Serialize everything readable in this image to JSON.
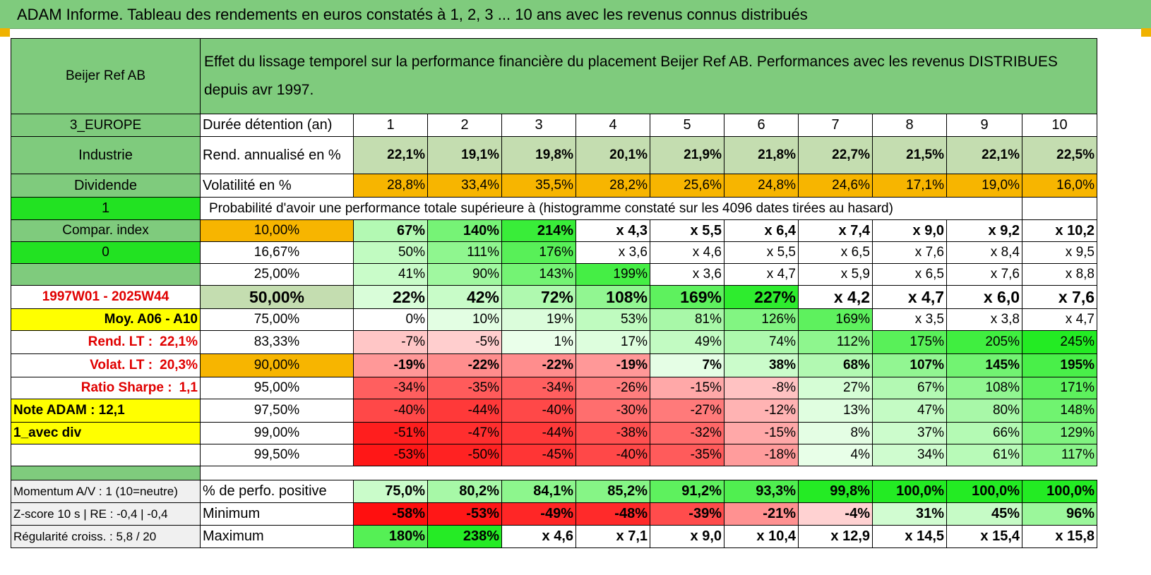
{
  "title": "ADAM Informe. Tableau des rendements en euros constatés à 1, 2, 3 ... 10 ans avec les revenus connus distribués",
  "header": {
    "name": "Beijer Ref AB",
    "description": "Effet du lissage temporel sur la performance financière du placement Beijer Ref AB. Performances avec les revenus DISTRIBUES depuis avr 1997."
  },
  "left": {
    "region": "3_EUROPE",
    "sector": "Industrie",
    "dividend": "Dividende",
    "val1": "1",
    "compar": "Compar. index",
    "val0": "0",
    "period": "1997W01 - 2025W44",
    "moy": "Moy. A06 - A10",
    "rend_label": "Rend. LT :",
    "rend_val": "22,1%",
    "volat_label": "Volat. LT :",
    "volat_val": "20,3%",
    "sharpe_label": "Ratio Sharpe :",
    "sharpe_val": "1,1",
    "note": "Note ADAM : 12,1",
    "div_mode": "1_avec div"
  },
  "durations_label": "Durée détention (an)",
  "durations": [
    "1",
    "2",
    "3",
    "4",
    "5",
    "6",
    "7",
    "8",
    "9",
    "10"
  ],
  "rend_label": "Rend. annualisé en %",
  "rend": [
    "22,1%",
    "19,1%",
    "19,8%",
    "20,1%",
    "21,9%",
    "21,8%",
    "22,7%",
    "21,5%",
    "22,1%",
    "22,5%"
  ],
  "vol_label": "Volatilité en %",
  "vol": [
    "28,8%",
    "33,4%",
    "35,5%",
    "28,2%",
    "25,6%",
    "24,8%",
    "24,6%",
    "17,1%",
    "19,0%",
    "16,0%"
  ],
  "prob_header": "Probabilité d'avoir une performance totale supérieure à (histogramme constaté sur les 4096 dates tirées au hasard)",
  "prob_rows": [
    {
      "p": "10,00%",
      "v": [
        "67%",
        "140%",
        "214%",
        "x 4,3",
        "x 5,5",
        "x 6,4",
        "x 7,4",
        "x 9,0",
        "x 9,2",
        "x 10,2"
      ]
    },
    {
      "p": "16,67%",
      "v": [
        "50%",
        "111%",
        "176%",
        "x 3,6",
        "x 4,6",
        "x 5,5",
        "x 6,5",
        "x 7,6",
        "x 8,4",
        "x 9,5"
      ]
    },
    {
      "p": "25,00%",
      "v": [
        "41%",
        "90%",
        "143%",
        "199%",
        "x 3,6",
        "x 4,7",
        "x 5,9",
        "x 6,5",
        "x 7,6",
        "x 8,8"
      ]
    },
    {
      "p": "50,00%",
      "v": [
        "22%",
        "42%",
        "72%",
        "108%",
        "169%",
        "227%",
        "x 4,2",
        "x 4,7",
        "x 6,0",
        "x 7,6"
      ]
    },
    {
      "p": "75,00%",
      "v": [
        "0%",
        "10%",
        "19%",
        "53%",
        "81%",
        "126%",
        "169%",
        "x 3,5",
        "x 3,8",
        "x 4,7"
      ]
    },
    {
      "p": "83,33%",
      "v": [
        "-7%",
        "-5%",
        "1%",
        "17%",
        "49%",
        "74%",
        "112%",
        "175%",
        "205%",
        "245%"
      ]
    },
    {
      "p": "90,00%",
      "v": [
        "-19%",
        "-22%",
        "-22%",
        "-19%",
        "7%",
        "38%",
        "68%",
        "107%",
        "145%",
        "195%"
      ]
    },
    {
      "p": "95,00%",
      "v": [
        "-34%",
        "-35%",
        "-34%",
        "-26%",
        "-15%",
        "-8%",
        "27%",
        "67%",
        "108%",
        "171%"
      ]
    },
    {
      "p": "97,50%",
      "v": [
        "-40%",
        "-44%",
        "-40%",
        "-30%",
        "-27%",
        "-12%",
        "13%",
        "47%",
        "80%",
        "148%"
      ]
    },
    {
      "p": "99,00%",
      "v": [
        "-51%",
        "-47%",
        "-44%",
        "-38%",
        "-32%",
        "-15%",
        "8%",
        "37%",
        "66%",
        "129%"
      ]
    },
    {
      "p": "99,50%",
      "v": [
        "-53%",
        "-50%",
        "-45%",
        "-40%",
        "-35%",
        "-18%",
        "4%",
        "34%",
        "61%",
        "117%"
      ]
    }
  ],
  "bottom": [
    {
      "left": "Momentum A/V : 1 (10=neutre)",
      "label": "% de perfo. positive",
      "v": [
        "75,0%",
        "80,2%",
        "84,1%",
        "85,2%",
        "91,2%",
        "93,3%",
        "99,8%",
        "100,0%",
        "100,0%",
        "100,0%"
      ]
    },
    {
      "left": "Z-score 10 s | RE : -0,4 | -0,4",
      "label": "Minimum",
      "v": [
        "-58%",
        "-53%",
        "-49%",
        "-48%",
        "-39%",
        "-21%",
        "-4%",
        "31%",
        "45%",
        "96%"
      ]
    },
    {
      "left": "Régularité croiss. : 5,8 / 20",
      "label": "Maximum",
      "v": [
        "180%",
        "238%",
        "x 4,6",
        "x 7,1",
        "x 9,0",
        "x 10,4",
        "x 12,9",
        "x 14,5",
        "x 15,4",
        "x 15,8"
      ]
    }
  ],
  "colors": {
    "header_green": "#7fcb7d",
    "orange": "#f7b500",
    "bright_green": "#22e222",
    "yellow": "#ffff00",
    "red_text": "#e00000"
  }
}
